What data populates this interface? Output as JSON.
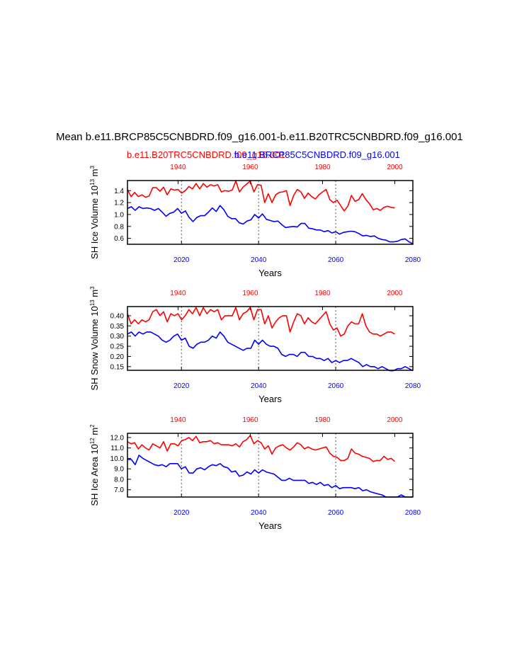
{
  "figure": {
    "title": "Mean b.e11.BRCP85C5CNBDRD.f09_g16.001-b.e11.B20TRC5CNBDRD.f09_g16.001",
    "subtitle_left": "b.e11.B20TRC5CNBDRD.f09_g16.001",
    "subtitle_right": "b.e11.BRCP85C5CNBDRD.f09_g16.001",
    "colors": {
      "hist": "#ff0000",
      "rcp": "#0000ff",
      "axis": "#000000",
      "grid": "#555555"
    }
  },
  "chart_data": [
    {
      "type": "line",
      "ylabel": "SH Ice Volume 10",
      "ylabel_sup": "13",
      "ylabel_unit": " m",
      "ylabel_unit_sup": "3",
      "xlabel": "Years",
      "ylim": [
        0.5,
        1.57
      ],
      "yticks": [
        "0.6",
        "0.8",
        "1.0",
        "1.2",
        "1.4"
      ],
      "ytick_values": [
        0.6,
        0.8,
        1.0,
        1.2,
        1.4
      ],
      "top_xlim": [
        1926,
        2005
      ],
      "top_ticks": [
        1940,
        1960,
        1980,
        2000
      ],
      "bottom_xlim": [
        2006,
        2080
      ],
      "bottom_ticks": [
        2020,
        2040,
        2060,
        2080
      ],
      "vlines_bottom": [
        2020,
        2040,
        2060
      ],
      "series": [
        {
          "name": "b.e11.B20TRC5CNBDRD.f09_g16.001",
          "axis": "top",
          "start": 1926,
          "values": [
            1.42,
            1.3,
            1.37,
            1.3,
            1.33,
            1.29,
            1.31,
            1.45,
            1.45,
            1.39,
            1.46,
            1.33,
            1.43,
            1.41,
            1.42,
            1.36,
            1.4,
            1.47,
            1.43,
            1.52,
            1.43,
            1.52,
            1.46,
            1.5,
            1.48,
            1.5,
            1.38,
            1.4,
            1.39,
            1.41,
            1.56,
            1.38,
            1.46,
            1.51,
            1.56,
            1.38,
            1.5,
            1.49,
            1.2,
            1.35,
            1.2,
            1.33,
            1.37,
            1.38,
            1.4,
            1.15,
            1.32,
            1.42,
            1.38,
            1.27,
            1.36,
            1.3,
            1.26,
            1.33,
            1.38,
            1.42,
            1.25,
            1.2,
            1.24,
            1.15,
            1.06,
            1.14,
            1.32,
            1.22,
            1.25,
            1.35,
            1.25,
            1.18,
            1.08,
            1.1,
            1.07,
            1.12,
            1.14,
            1.12,
            1.11
          ]
        },
        {
          "name": "b.e11.BRCP85C5CNBDRD.f09_g16.001",
          "axis": "bottom",
          "start": 2006,
          "values": [
            1.1,
            1.13,
            1.07,
            1.13,
            1.1,
            1.11,
            1.1,
            1.07,
            1.1,
            1.04,
            0.97,
            1.02,
            1.04,
            1.1,
            1.02,
            1.06,
            0.95,
            0.88,
            0.95,
            0.98,
            0.98,
            1.04,
            1.11,
            1.05,
            1.15,
            1.08,
            0.97,
            0.93,
            0.93,
            0.86,
            0.84,
            0.89,
            0.91,
            1.0,
            0.94,
            1.01,
            0.92,
            0.9,
            0.88,
            0.89,
            0.83,
            0.78,
            0.79,
            0.8,
            0.79,
            0.85,
            0.85,
            0.77,
            0.76,
            0.74,
            0.74,
            0.71,
            0.73,
            0.69,
            0.71,
            0.67,
            0.7,
            0.71,
            0.72,
            0.71,
            0.68,
            0.64,
            0.65,
            0.63,
            0.64,
            0.6,
            0.58,
            0.57,
            0.54,
            0.54,
            0.55,
            0.58,
            0.59,
            0.54,
            0.51
          ]
        }
      ]
    },
    {
      "type": "line",
      "ylabel": "SH Snow Volume 10",
      "ylabel_sup": "13",
      "ylabel_unit": " m",
      "ylabel_unit_sup": "3",
      "xlabel": "Years",
      "ylim": [
        0.132,
        0.445
      ],
      "yticks": [
        "0.15",
        "0.20",
        "0.25",
        "0.30",
        "0.35",
        "0.40"
      ],
      "ytick_values": [
        0.15,
        0.2,
        0.25,
        0.3,
        0.35,
        0.4
      ],
      "top_xlim": [
        1926,
        2005
      ],
      "top_ticks": [
        1940,
        1960,
        1980,
        2000
      ],
      "bottom_xlim": [
        2006,
        2080
      ],
      "bottom_ticks": [
        2020,
        2040,
        2060,
        2080
      ],
      "vlines_bottom": [
        2020,
        2040,
        2060
      ],
      "series": [
        {
          "name": "b.e11.B20TRC5CNBDRD.f09_g16.001",
          "axis": "top",
          "start": 1926,
          "values": [
            0.41,
            0.36,
            0.38,
            0.36,
            0.38,
            0.37,
            0.38,
            0.42,
            0.43,
            0.4,
            0.42,
            0.37,
            0.41,
            0.4,
            0.41,
            0.38,
            0.4,
            0.43,
            0.41,
            0.44,
            0.4,
            0.44,
            0.41,
            0.43,
            0.42,
            0.43,
            0.38,
            0.4,
            0.4,
            0.4,
            0.44,
            0.38,
            0.41,
            0.42,
            0.44,
            0.38,
            0.43,
            0.43,
            0.36,
            0.4,
            0.34,
            0.37,
            0.39,
            0.4,
            0.4,
            0.32,
            0.37,
            0.41,
            0.4,
            0.36,
            0.39,
            0.37,
            0.36,
            0.38,
            0.4,
            0.42,
            0.36,
            0.33,
            0.34,
            0.3,
            0.31,
            0.35,
            0.37,
            0.36,
            0.36,
            0.41,
            0.35,
            0.32,
            0.31,
            0.31,
            0.3,
            0.31,
            0.32,
            0.32,
            0.31
          ]
        },
        {
          "name": "b.e11.BRCP85C5CNBDRD.f09_g16.001",
          "axis": "bottom",
          "start": 2006,
          "values": [
            0.31,
            0.32,
            0.3,
            0.32,
            0.31,
            0.32,
            0.32,
            0.31,
            0.3,
            0.28,
            0.27,
            0.28,
            0.3,
            0.31,
            0.28,
            0.29,
            0.25,
            0.24,
            0.26,
            0.27,
            0.27,
            0.28,
            0.3,
            0.29,
            0.32,
            0.3,
            0.27,
            0.26,
            0.25,
            0.24,
            0.23,
            0.24,
            0.24,
            0.28,
            0.26,
            0.28,
            0.26,
            0.25,
            0.25,
            0.24,
            0.21,
            0.2,
            0.21,
            0.21,
            0.2,
            0.22,
            0.22,
            0.2,
            0.2,
            0.19,
            0.19,
            0.18,
            0.19,
            0.17,
            0.18,
            0.17,
            0.18,
            0.18,
            0.19,
            0.18,
            0.17,
            0.15,
            0.16,
            0.15,
            0.15,
            0.14,
            0.15,
            0.14,
            0.13,
            0.13,
            0.14,
            0.14,
            0.15,
            0.14,
            0.13
          ]
        }
      ]
    },
    {
      "type": "line",
      "ylabel": "SH Ice Area 10",
      "ylabel_sup": "12",
      "ylabel_unit": " m",
      "ylabel_unit_sup": "2",
      "xlabel": "Years",
      "ylim": [
        6.3,
        12.4
      ],
      "yticks": [
        "7.0",
        "8.0",
        "9.0",
        "10.0",
        "11.0",
        "12.0"
      ],
      "ytick_values": [
        7.0,
        8.0,
        9.0,
        10.0,
        11.0,
        12.0
      ],
      "top_xlim": [
        1926,
        2005
      ],
      "top_ticks": [
        1940,
        1960,
        1980,
        2000
      ],
      "bottom_xlim": [
        2006,
        2080
      ],
      "bottom_ticks": [
        2020,
        2040,
        2060,
        2080
      ],
      "vlines_bottom": [
        2020,
        2040,
        2060
      ],
      "series": [
        {
          "name": "b.e11.B20TRC5CNBDRD.f09_g16.001",
          "axis": "top",
          "start": 1926,
          "values": [
            11.6,
            11.4,
            11.5,
            10.9,
            11.3,
            11.0,
            10.8,
            11.4,
            11.2,
            11.0,
            11.6,
            10.7,
            11.4,
            11.4,
            11.2,
            11.7,
            11.8,
            12.0,
            11.7,
            12.1,
            11.5,
            11.6,
            11.6,
            11.7,
            11.4,
            11.5,
            11.3,
            11.3,
            11.3,
            11.2,
            11.4,
            11.1,
            11.6,
            11.8,
            12.2,
            11.4,
            11.7,
            11.5,
            10.9,
            11.2,
            10.4,
            11.0,
            11.2,
            11.3,
            11.0,
            10.8,
            11.1,
            11.5,
            11.3,
            10.9,
            11.1,
            10.9,
            10.8,
            10.9,
            11.0,
            11.1,
            10.5,
            10.2,
            10.1,
            9.8,
            9.8,
            10.0,
            10.9,
            10.5,
            10.4,
            10.2,
            10.1,
            10.0,
            9.7,
            9.8,
            9.8,
            10.2,
            9.9,
            10.0,
            9.7
          ]
        },
        {
          "name": "b.e11.BRCP85C5CNBDRD.f09_g16.001",
          "axis": "bottom",
          "start": 2006,
          "values": [
            9.9,
            9.9,
            9.4,
            10.3,
            10.0,
            9.8,
            9.6,
            9.4,
            9.3,
            9.4,
            9.2,
            9.5,
            9.5,
            9.5,
            9.0,
            9.2,
            8.6,
            8.6,
            9.0,
            9.1,
            8.9,
            9.2,
            9.4,
            9.3,
            9.5,
            9.2,
            9.1,
            8.7,
            8.8,
            8.3,
            8.4,
            8.7,
            8.5,
            8.9,
            8.6,
            8.9,
            8.7,
            8.6,
            8.5,
            8.2,
            7.9,
            7.9,
            8.1,
            7.9,
            7.9,
            7.9,
            7.9,
            7.6,
            7.7,
            7.5,
            7.7,
            7.4,
            7.5,
            7.2,
            7.4,
            7.1,
            7.2,
            7.2,
            7.2,
            7.1,
            7.2,
            6.9,
            7.0,
            6.8,
            6.7,
            6.6,
            6.5,
            6.3,
            6.3,
            6.3,
            6.3,
            6.5,
            6.3,
            6.3,
            6.3
          ]
        }
      ]
    }
  ]
}
